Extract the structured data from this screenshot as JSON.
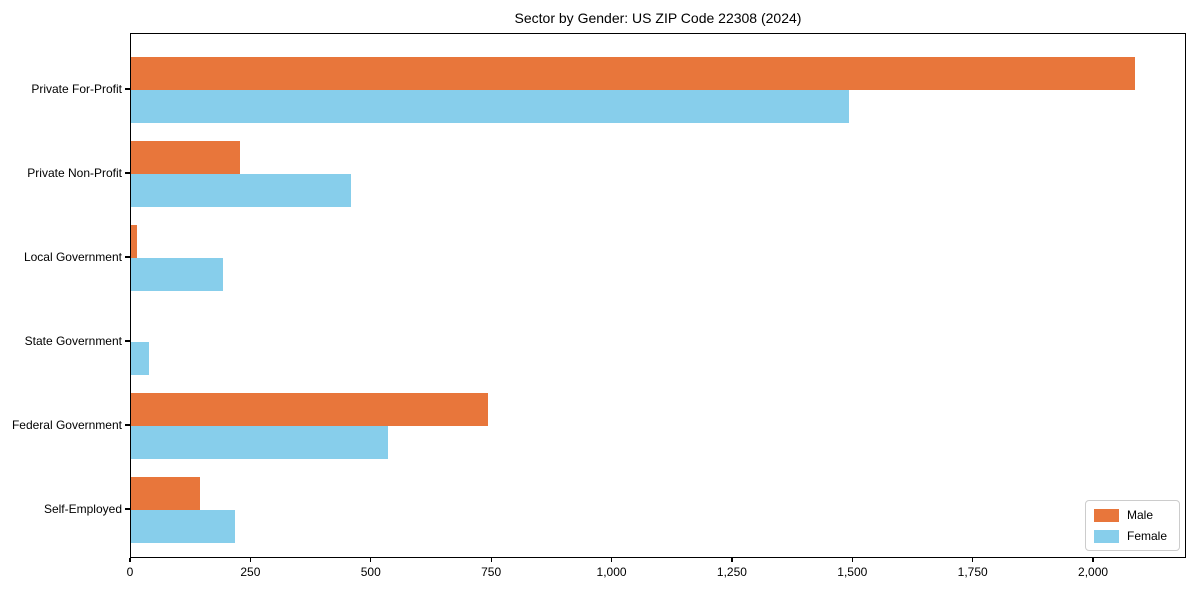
{
  "title": "Sector by Gender: US ZIP Code 22308 (2024)",
  "chart_data": {
    "type": "bar",
    "orientation": "horizontal",
    "title": "Sector by Gender: US ZIP Code 22308 (2024)",
    "categories": [
      "Private For-Profit",
      "Private Non-Profit",
      "Local Government",
      "State Government",
      "Federal Government",
      "Self-Employed"
    ],
    "series": [
      {
        "name": "Male",
        "color": "#e8763b",
        "values": [
          2089,
          227,
          12,
          0,
          743,
          144
        ]
      },
      {
        "name": "Female",
        "color": "#87ceeb",
        "values": [
          1494,
          458,
          191,
          38,
          534,
          216
        ]
      }
    ],
    "xlim": [
      0,
      2193
    ],
    "x_ticks": [
      0,
      250,
      500,
      750,
      1000,
      1250,
      1500,
      1750,
      2000
    ],
    "x_tick_labels": [
      "0",
      "250",
      "500",
      "750",
      "1,000",
      "1,250",
      "1,500",
      "1,750",
      "2,000"
    ],
    "xlabel": "",
    "ylabel": "",
    "grid": false,
    "legend_position": "lower right"
  }
}
